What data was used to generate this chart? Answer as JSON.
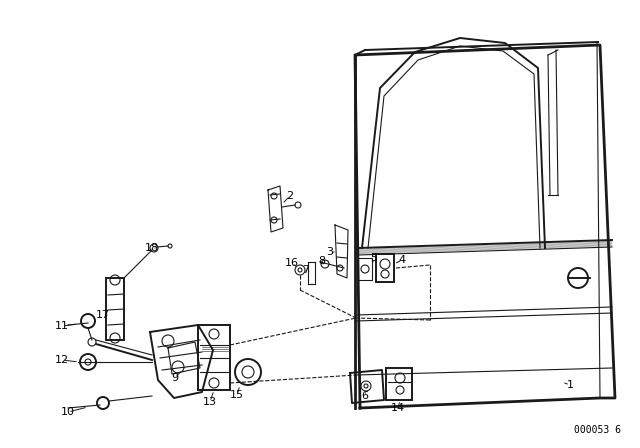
{
  "bg_color": "#ffffff",
  "line_color": "#1a1a1a",
  "part_number_ref": "000053 6",
  "label_font_size": 8,
  "ref_font_size": 7
}
